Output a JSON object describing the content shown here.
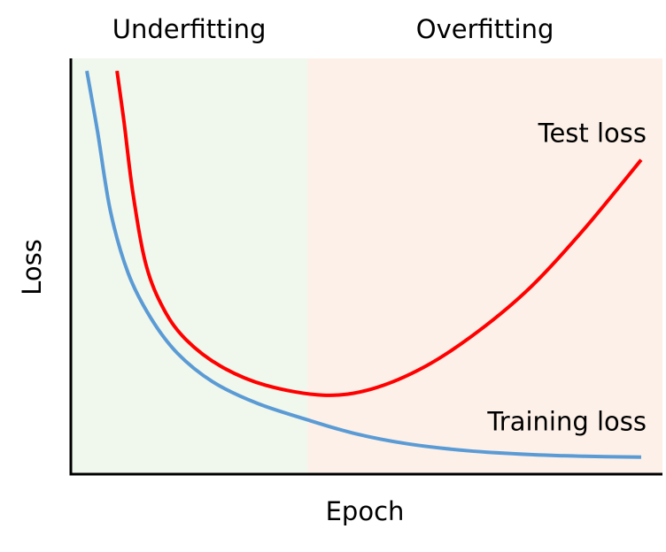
{
  "chart_data": {
    "type": "line",
    "xlabel": "Epoch",
    "ylabel": "Loss",
    "xlim": [
      0,
      100
    ],
    "ylim": [
      0,
      100
    ],
    "regions": [
      {
        "label": "Underfitting",
        "start": 0,
        "end": 40,
        "color": "#f0f7ec"
      },
      {
        "label": "Overfitting",
        "start": 40,
        "end": 100,
        "color": "#fcf0e8"
      }
    ],
    "series": [
      {
        "name": "Training loss",
        "color": "#5b9bd5",
        "x": [
          2.7,
          4.5,
          6.7,
          9.7,
          13.5,
          18.0,
          24.0,
          31.4,
          39.7,
          47.9,
          56.9,
          67.4,
          77.8,
          86.8,
          96.4
        ],
        "values": [
          97.0,
          82.5,
          63.2,
          48.3,
          37.6,
          29.1,
          22.2,
          17.1,
          13.2,
          9.8,
          7.3,
          5.6,
          4.7,
          4.3,
          4.1
        ]
      },
      {
        "name": "Test loss",
        "color": "#ff0000",
        "x": [
          7.8,
          9.0,
          10.5,
          12.7,
          15.7,
          19.5,
          25.4,
          32.9,
          42.7,
          50.9,
          59.9,
          68.9,
          77.8,
          86.8,
          96.4
        ],
        "values": [
          97.0,
          84.6,
          67.5,
          50.4,
          39.7,
          32.3,
          25.9,
          21.4,
          19.0,
          20.5,
          25.9,
          34.4,
          45.1,
          59.0,
          75.6
        ]
      }
    ]
  }
}
